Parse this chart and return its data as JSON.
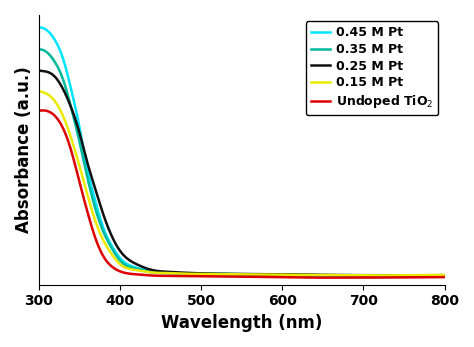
{
  "title": "",
  "xlabel": "Wavelength (nm)",
  "ylabel": "Absorbance (a.u.)",
  "xlim": [
    300,
    800
  ],
  "xticks": [
    300,
    400,
    500,
    600,
    700,
    800
  ],
  "series": [
    {
      "label": "0.45 M Pt",
      "color": "#00E5FF",
      "wl_points": [
        300,
        310,
        320,
        330,
        340,
        350,
        360,
        370,
        380,
        390,
        400,
        420,
        440,
        460,
        480,
        500,
        550,
        600,
        620,
        640,
        660,
        700,
        750,
        800
      ],
      "abs_points": [
        2.1,
        2.08,
        2.0,
        1.85,
        1.6,
        1.3,
        0.95,
        0.68,
        0.46,
        0.32,
        0.22,
        0.14,
        0.11,
        0.1,
        0.09,
        0.09,
        0.085,
        0.082,
        0.078,
        0.072,
        0.068,
        0.065,
        0.065,
        0.067
      ]
    },
    {
      "label": "0.35 M Pt",
      "color": "#00B89C",
      "wl_points": [
        300,
        310,
        320,
        330,
        340,
        350,
        360,
        370,
        380,
        390,
        400,
        420,
        440,
        460,
        480,
        500,
        550,
        600,
        620,
        640,
        660,
        700,
        750,
        800
      ],
      "abs_points": [
        1.92,
        1.9,
        1.82,
        1.68,
        1.45,
        1.18,
        0.88,
        0.62,
        0.43,
        0.3,
        0.2,
        0.13,
        0.1,
        0.095,
        0.09,
        0.088,
        0.085,
        0.082,
        0.08,
        0.078,
        0.075,
        0.073,
        0.072,
        0.073
      ]
    },
    {
      "label": "0.25 M Pt",
      "color": "#111111",
      "wl_points": [
        300,
        310,
        320,
        330,
        340,
        350,
        360,
        370,
        380,
        390,
        400,
        420,
        440,
        460,
        480,
        500,
        550,
        600,
        620,
        640,
        660,
        700,
        750,
        800
      ],
      "abs_points": [
        1.75,
        1.74,
        1.7,
        1.6,
        1.45,
        1.25,
        1.0,
        0.78,
        0.57,
        0.4,
        0.28,
        0.17,
        0.12,
        0.105,
        0.098,
        0.093,
        0.088,
        0.085,
        0.083,
        0.082,
        0.08,
        0.078,
        0.077,
        0.078
      ]
    },
    {
      "label": "0.15 M Pt",
      "color": "#EAEA00",
      "wl_points": [
        300,
        310,
        320,
        330,
        340,
        350,
        360,
        370,
        380,
        390,
        400,
        420,
        440,
        460,
        480,
        500,
        550,
        600,
        620,
        640,
        660,
        700,
        750,
        800
      ],
      "abs_points": [
        1.58,
        1.56,
        1.5,
        1.38,
        1.2,
        0.98,
        0.74,
        0.52,
        0.36,
        0.25,
        0.17,
        0.12,
        0.1,
        0.095,
        0.09,
        0.088,
        0.085,
        0.082,
        0.08,
        0.079,
        0.078,
        0.076,
        0.077,
        0.08
      ]
    },
    {
      "label": "Undoped TiO$_2$",
      "color": "#DD0000",
      "wl_points": [
        300,
        310,
        320,
        330,
        340,
        350,
        360,
        370,
        380,
        390,
        400,
        420,
        440,
        460,
        480,
        500,
        550,
        600,
        620,
        640,
        660,
        700,
        750,
        800
      ],
      "abs_points": [
        1.42,
        1.42,
        1.38,
        1.28,
        1.1,
        0.85,
        0.6,
        0.38,
        0.23,
        0.15,
        0.11,
        0.085,
        0.075,
        0.072,
        0.07,
        0.068,
        0.065,
        0.062,
        0.06,
        0.058,
        0.058,
        0.058,
        0.06,
        0.062
      ]
    }
  ],
  "legend_fontsize": 9,
  "axis_label_fontsize": 12,
  "tick_fontsize": 10,
  "linewidth": 1.8
}
